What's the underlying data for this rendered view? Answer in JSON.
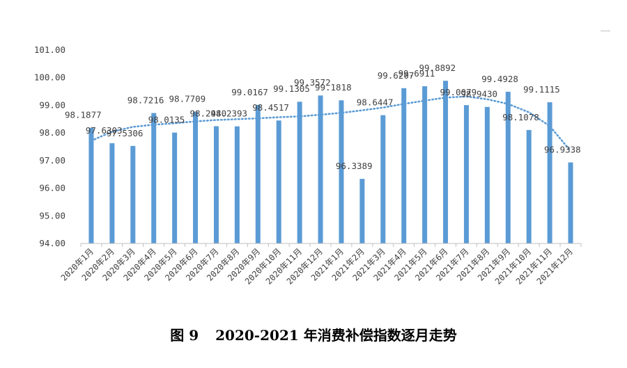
{
  "caption": {
    "figure": "图 9",
    "title": "2020-2021 年消费补偿指数逐月走势"
  },
  "colors": {
    "bar": "#5B9BD5",
    "trend": "#5B9BD5",
    "axis": "#bfbfbf",
    "text": "#404040"
  },
  "chart_data": {
    "type": "bar",
    "title": "",
    "xlabel": "",
    "ylabel": "",
    "ylim": [
      94.0,
      101.0
    ],
    "yticks": [
      "94.00",
      "95.00",
      "96.00",
      "97.00",
      "98.00",
      "99.00",
      "100.00",
      "101.00"
    ],
    "grid": false,
    "legend": "none",
    "categories": [
      "2020年1月",
      "2020年2月",
      "2020年3月",
      "2020年4月",
      "2020年5月",
      "2020年6月",
      "2020年7月",
      "2020年8月",
      "2020年9月",
      "2020年10月",
      "2020年11月",
      "2020年12月",
      "2021年1月",
      "2021年2月",
      "2021年3月",
      "2021年4月",
      "2021年5月",
      "2021年6月",
      "2021年7月",
      "2021年8月",
      "2021年9月",
      "2021年10月",
      "2021年11月",
      "2021年12月"
    ],
    "values": [
      98.1877,
      97.6303,
      97.5306,
      98.7216,
      98.0135,
      98.7709,
      98.244,
      98.2393,
      99.0167,
      98.4517,
      99.1305,
      99.3572,
      99.1818,
      96.3389,
      98.6447,
      99.6207,
      99.6911,
      99.8892,
      99.0079,
      98.943,
      99.4928,
      98.1078,
      99.1115,
      96.9338
    ],
    "data_labels": [
      "98.1877",
      "97.6303",
      "97.5306",
      "98.7216",
      "98.0135",
      "98.7709",
      "98.2440",
      "98.2393",
      "99.0167",
      "98.4517",
      "99.1305",
      "99.3572",
      "99.1818",
      "96.3389",
      "98.6447",
      "99.6207",
      "99.6911",
      "99.8892",
      "99.0079",
      "98.9430",
      "99.4928",
      "98.1078",
      "99.1115",
      "96.9338"
    ],
    "trendline": {
      "style": "dotted",
      "values": [
        97.72,
        98.05,
        98.22,
        98.3,
        98.35,
        98.42,
        98.47,
        98.5,
        98.53,
        98.57,
        98.6,
        98.66,
        98.73,
        98.82,
        98.92,
        99.05,
        99.17,
        99.28,
        99.32,
        99.22,
        99.05,
        98.75,
        98.25,
        97.35
      ]
    }
  }
}
